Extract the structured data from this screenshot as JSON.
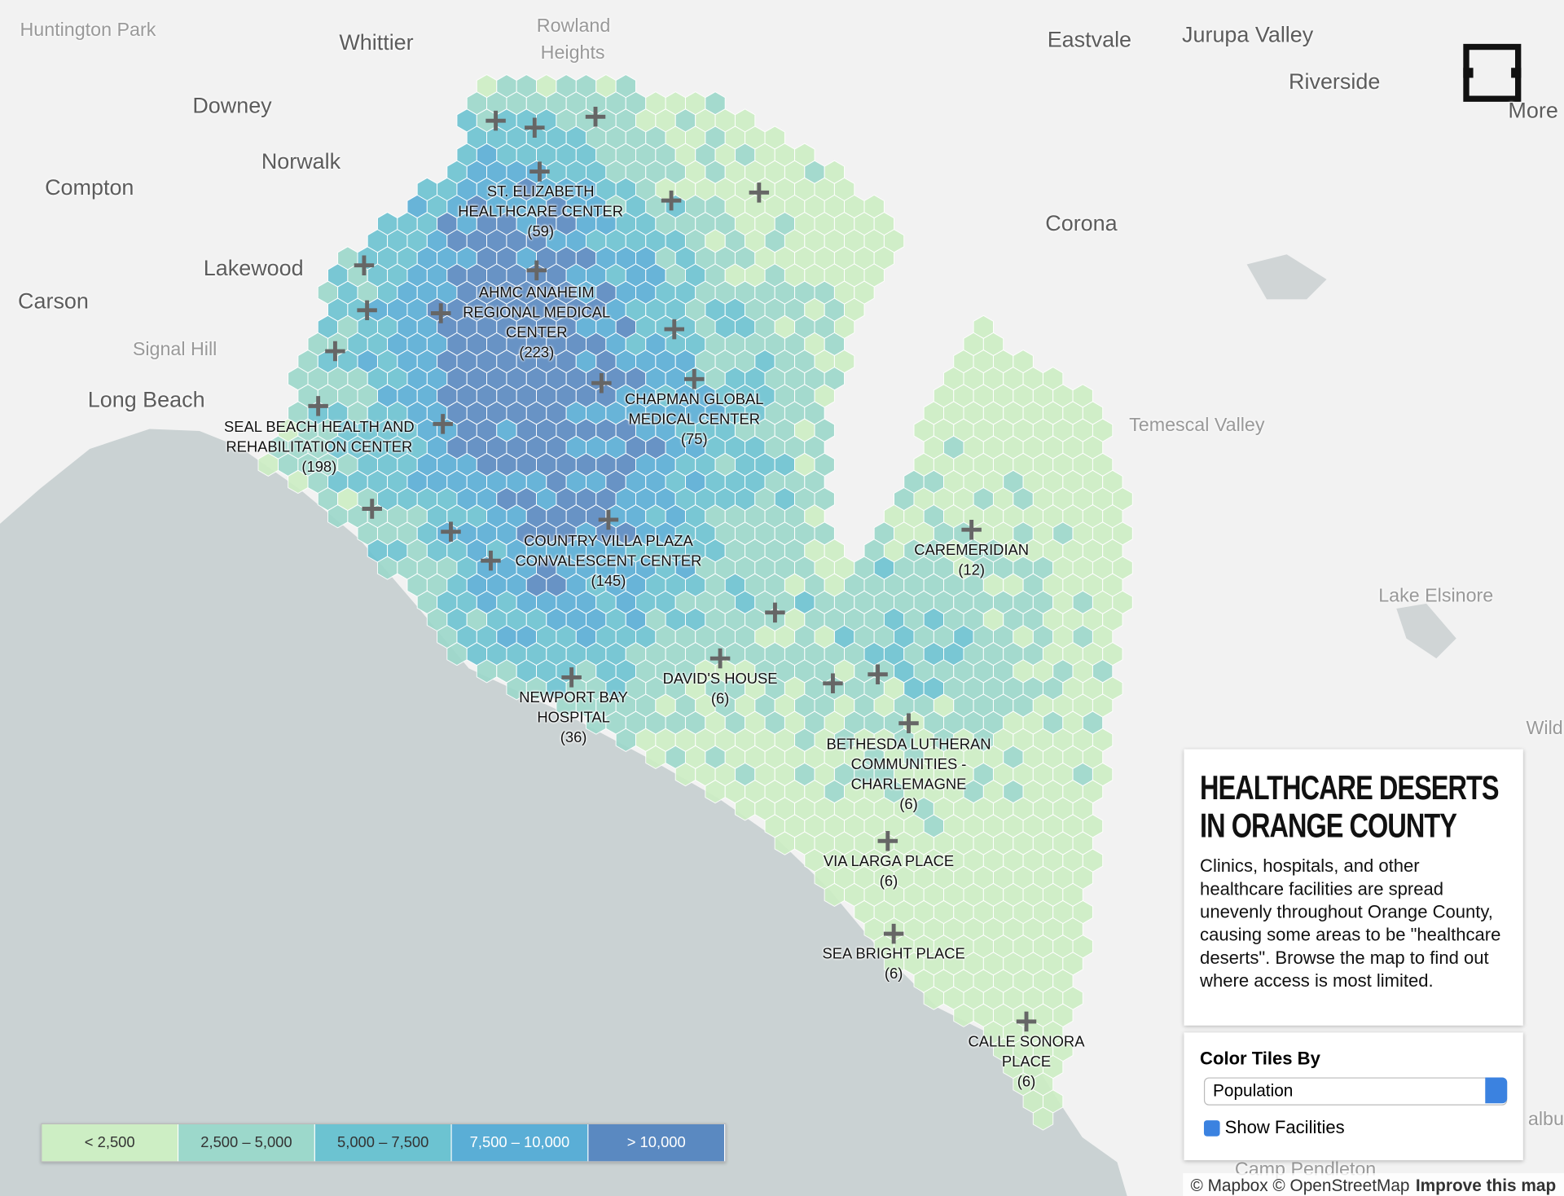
{
  "cities": [
    "Huntington Park",
    "Whittier",
    "Rowland",
    "Heights",
    "Eastvale",
    "Jurupa Valley",
    "Riverside",
    "More",
    "Downey",
    "Norwalk",
    "Compton",
    "Corona",
    "Lakewood",
    "Carson",
    "Signal Hill",
    "Long Beach",
    "Temescal Valley",
    "Lake Elsinore",
    "Wild",
    "Camp Pendleton",
    "albu"
  ],
  "facilities": [
    {
      "name": "ST. ELIZABETH HEALTHCARE CENTER",
      "count": "(59)"
    },
    {
      "name": "AHMC ANAHEIM REGIONAL MEDICAL CENTER",
      "count": "(223)"
    },
    {
      "name": "CHAPMAN GLOBAL MEDICAL CENTER",
      "count": "(75)"
    },
    {
      "name": "SEAL BEACH HEALTH AND REHABILITATION CENTER",
      "count": "(198)"
    },
    {
      "name": "COUNTRY VILLA PLAZA CONVALESCENT CENTER",
      "count": "(145)"
    },
    {
      "name": "CAREMERIDIAN",
      "count": "(12)"
    },
    {
      "name": "DAVID'S HOUSE",
      "count": "(6)"
    },
    {
      "name": "NEWPORT BAY HOSPITAL",
      "count": "(36)"
    },
    {
      "name": "BETHESDA LUTHERAN COMMUNITIES - CHARLEMAGNE",
      "count": "(6)"
    },
    {
      "name": "VIA LARGA PLACE",
      "count": "(6)"
    },
    {
      "name": "SEA BRIGHT PLACE",
      "count": "(6)"
    },
    {
      "name": "CALLE SONORA PLACE",
      "count": "(6)"
    }
  ],
  "legend": [
    {
      "label": "< 2,500",
      "color": "#cdeec4"
    },
    {
      "label": "2,500 – 5,000",
      "color": "#9cd8cb"
    },
    {
      "label": "5,000 – 7,500",
      "color": "#6cc3d1"
    },
    {
      "label": "7,500 – 10,000",
      "color": "#5aaed6"
    },
    {
      "label": "> 10,000",
      "color": "#5a89c1"
    }
  ],
  "panel": {
    "title": "HEALTHCARE DESERTS IN ORANGE COUNTY",
    "description": "Clinics, hospitals, and other healthcare facilities are spread unevenly throughout Orange County, causing some areas to be \"healthcare deserts\". Browse the map to find out where access is most limited.",
    "control_label": "Color Tiles By",
    "select_value": "Population",
    "checkbox_label": "Show Facilities"
  },
  "attribution": {
    "credits": "© Mapbox © OpenStreetMap",
    "link": "Improve this map"
  }
}
